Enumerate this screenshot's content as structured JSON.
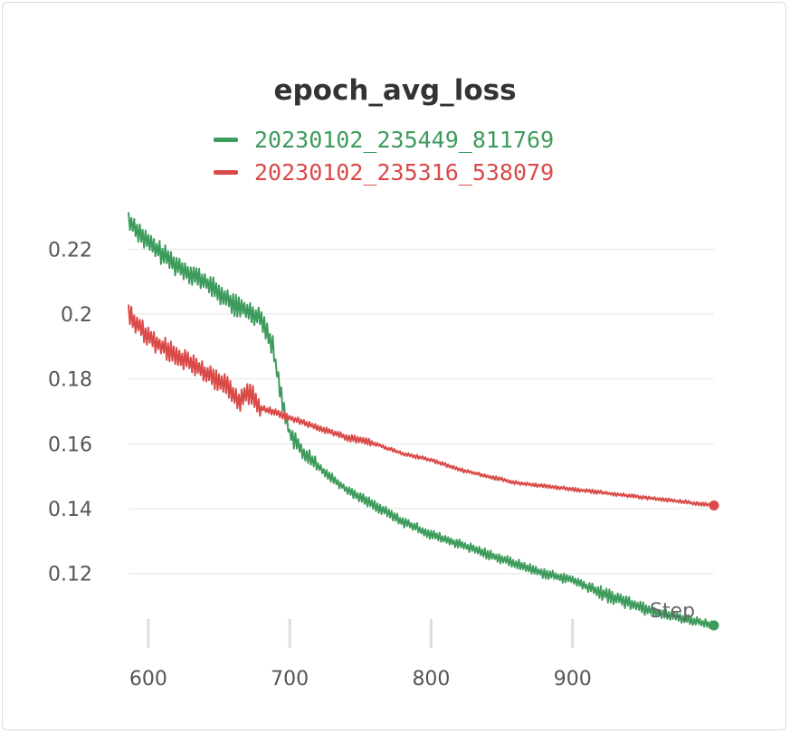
{
  "chart_data": {
    "type": "line",
    "title": "epoch_avg_loss",
    "xlabel": "Step",
    "ylabel": "",
    "xlim": [
      586,
      1000
    ],
    "ylim": [
      0.1015,
      0.236
    ],
    "x_ticks": [
      600,
      700,
      800,
      900
    ],
    "y_ticks": [
      0.12,
      0.14,
      0.16,
      0.18,
      0.2,
      0.22
    ],
    "y_tick_labels": [
      "0.12",
      "0.14",
      "0.16",
      "0.18",
      "0.2",
      "0.22"
    ],
    "grid": "horizontal",
    "legend_position": "top-center",
    "series": [
      {
        "name": "20230102_235449_811769",
        "color": "#3d9b5c",
        "x": [
          586,
          600,
          620,
          640,
          660,
          680,
          688,
          693,
          700,
          710,
          720,
          740,
          760,
          780,
          800,
          820,
          840,
          860,
          880,
          900,
          920,
          940,
          960,
          980,
          1000
        ],
        "y": [
          0.229,
          0.222,
          0.215,
          0.21,
          0.203,
          0.199,
          0.19,
          0.177,
          0.163,
          0.157,
          0.153,
          0.146,
          0.141,
          0.136,
          0.132,
          0.129,
          0.126,
          0.123,
          0.12,
          0.118,
          0.114,
          0.111,
          0.108,
          0.106,
          0.104
        ]
      },
      {
        "name": "20230102_235316_538079",
        "color": "#d94a48",
        "x": [
          586,
          600,
          620,
          640,
          655,
          665,
          672,
          680,
          700,
          720,
          740,
          760,
          780,
          800,
          820,
          840,
          860,
          880,
          900,
          920,
          940,
          960,
          980,
          1000
        ],
        "y": [
          0.2,
          0.193,
          0.187,
          0.182,
          0.178,
          0.173,
          0.176,
          0.171,
          0.168,
          0.165,
          0.162,
          0.16,
          0.157,
          0.155,
          0.152,
          0.15,
          0.148,
          0.147,
          0.146,
          0.145,
          0.144,
          0.143,
          0.142,
          0.141
        ]
      }
    ]
  }
}
